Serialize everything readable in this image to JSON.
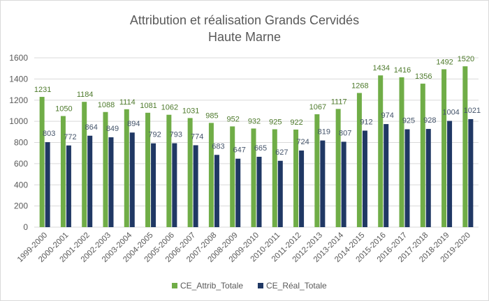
{
  "chart_data": {
    "type": "bar",
    "title": "Attribution et réalisation Grands Cervidés",
    "subtitle": "Haute Marne",
    "xlabel": "",
    "ylabel": "",
    "ylim": [
      0,
      1600
    ],
    "yticks": [
      0,
      200,
      400,
      600,
      800,
      1000,
      1200,
      1400,
      1600
    ],
    "grid": true,
    "legend_position": "bottom",
    "categories": [
      "1999-2000",
      "2000-2001",
      "2001-2002",
      "2002-2003",
      "2003-2004",
      "2004-2005",
      "2005-2006",
      "2006-2007",
      "2007-2008",
      "2008-2009",
      "2009-2010",
      "2010-2011",
      "2011-2012",
      "2012-2013",
      "2013-2014",
      "2014-2015",
      "2015-2016",
      "2016-2017",
      "2017-2018",
      "2018-2019",
      "2019-2020"
    ],
    "series": [
      {
        "name": "CE_Attrib_Totale",
        "color": "#70ad47",
        "label_color": "#4e7a2c",
        "values": [
          1231,
          1050,
          1184,
          1088,
          1114,
          1081,
          1062,
          1031,
          985,
          952,
          932,
          925,
          922,
          1067,
          1117,
          1268,
          1434,
          1416,
          1356,
          1492,
          1520
        ]
      },
      {
        "name": "CE_Réal_Totale",
        "color": "#203864",
        "label_color": "#44546a",
        "values": [
          803,
          772,
          864,
          849,
          894,
          792,
          793,
          774,
          683,
          647,
          665,
          627,
          724,
          819,
          807,
          912,
          974,
          925,
          928,
          1004,
          1021
        ]
      }
    ]
  }
}
